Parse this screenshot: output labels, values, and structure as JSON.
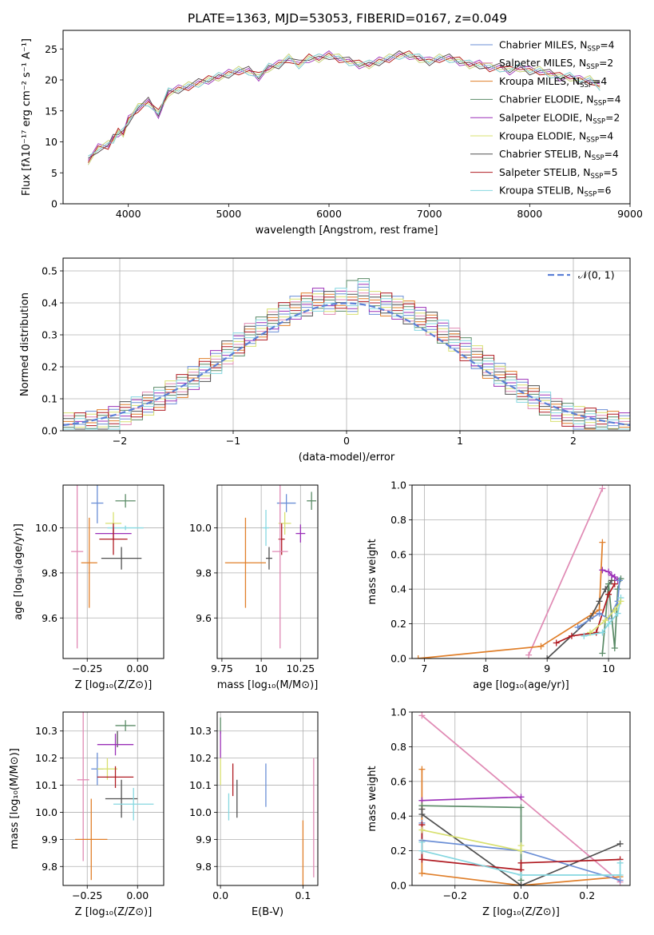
{
  "figure": {
    "title": "PLATE=1363, MJD=53053, FIBERID=0167, z=0.049"
  },
  "colors": {
    "series": [
      "#6b8fd6",
      "#e08ab4",
      "#e07f2a",
      "#5b8b67",
      "#9b30b8",
      "#d8e070",
      "#505050",
      "#b01b22",
      "#86d7e0"
    ],
    "gauss": "#5b7fd6",
    "grid": "#b0b0b0"
  },
  "chart_data": [
    {
      "id": "spectrum",
      "type": "line",
      "xlabel": "wavelength [Angstrom, rest frame]",
      "ylabel": "Flux [fλ10⁻¹⁷ erg cm⁻² s⁻¹ A⁻¹]",
      "xlim": [
        3350,
        9000
      ],
      "ylim": [
        0,
        28
      ],
      "xticks": [
        4000,
        5000,
        6000,
        7000,
        8000,
        9000
      ],
      "yticks": [
        0,
        5,
        10,
        15,
        20,
        25
      ],
      "grid": false,
      "legend_position": "right",
      "x": [
        3600,
        3700,
        3800,
        3850,
        3900,
        3950,
        4000,
        4100,
        4200,
        4300,
        4400,
        4500,
        4600,
        4700,
        4800,
        4900,
        5000,
        5100,
        5200,
        5300,
        5400,
        5500,
        5600,
        5700,
        5800,
        5900,
        6000,
        6100,
        6200,
        6300,
        6400,
        6500,
        6600,
        6700,
        6800,
        6900,
        7000,
        7100,
        7200,
        7300,
        7400,
        7500,
        7600,
        7700,
        7800,
        7900,
        8000,
        8100,
        8200,
        8300,
        8400,
        8500,
        8600,
        8700
      ],
      "y": [
        7,
        9,
        9.5,
        10.5,
        11.5,
        11.5,
        13.5,
        15.5,
        16.5,
        14.5,
        18,
        18.5,
        19,
        19.5,
        20,
        20.5,
        21,
        21.5,
        21.5,
        20.5,
        22,
        22.5,
        23.5,
        22.5,
        23.5,
        23.5,
        24,
        23.5,
        23,
        22.5,
        22.5,
        23,
        23.5,
        24,
        24,
        23.5,
        23,
        23.5,
        23.5,
        23,
        22.5,
        22.5,
        22,
        22,
        21.5,
        22,
        21.5,
        21.5,
        21,
        20.5,
        20.5,
        20,
        20,
        19
      ],
      "series": [
        {
          "name": "Chabrier MILES, N",
          "sub": "SSP",
          "suffix": "=4"
        },
        {
          "name": "Salpeter MILES, N",
          "sub": "SSP",
          "suffix": "=2"
        },
        {
          "name": "Kroupa MILES, N",
          "sub": "SSP",
          "suffix": "=4"
        },
        {
          "name": "Chabrier ELODIE, N",
          "sub": "SSP",
          "suffix": "=4"
        },
        {
          "name": "Salpeter ELODIE, N",
          "sub": "SSP",
          "suffix": "=2"
        },
        {
          "name": "Kroupa ELODIE, N",
          "sub": "SSP",
          "suffix": "=4"
        },
        {
          "name": "Chabrier STELIB, N",
          "sub": "SSP",
          "suffix": "=4"
        },
        {
          "name": "Salpeter STELIB, N",
          "sub": "SSP",
          "suffix": "=5"
        },
        {
          "name": "Kroupa STELIB, N",
          "sub": "SSP",
          "suffix": "=6"
        }
      ]
    },
    {
      "id": "residuals",
      "type": "bar",
      "xlabel": "(data-model)/error",
      "ylabel": "Normed distribution",
      "xlim": [
        -2.5,
        2.5
      ],
      "ylim": [
        0,
        0.54
      ],
      "xticks": [
        -2,
        -1,
        0,
        1,
        2
      ],
      "yticks": [
        0.0,
        0.1,
        0.2,
        0.3,
        0.4,
        0.5
      ],
      "grid": true,
      "legend_position": "top-right",
      "gauss_label": "𝒩(0, 1)",
      "bin_width": 0.1,
      "bin_start": -2.5,
      "values": [
        0.02,
        0.02,
        0.025,
        0.03,
        0.04,
        0.055,
        0.07,
        0.085,
        0.1,
        0.12,
        0.14,
        0.165,
        0.19,
        0.215,
        0.245,
        0.27,
        0.3,
        0.32,
        0.345,
        0.365,
        0.385,
        0.395,
        0.41,
        0.4,
        0.41,
        0.4,
        0.44,
        0.4,
        0.395,
        0.385,
        0.37,
        0.35,
        0.335,
        0.31,
        0.285,
        0.255,
        0.23,
        0.2,
        0.175,
        0.15,
        0.125,
        0.105,
        0.085,
        0.065,
        0.05,
        0.04,
        0.035,
        0.03,
        0.025,
        0.02
      ]
    },
    {
      "id": "z-age",
      "type": "scatter",
      "xlabel": "Z [log₁₀(Z/Z⊙)]",
      "ylabel": "age  [log₁₀(age/yr)]",
      "xlim": [
        -0.37,
        0.13
      ],
      "ylim": [
        9.42,
        10.19
      ],
      "xticks": [
        -0.25,
        0.0
      ],
      "xtick_labels": [
        "−0.25",
        "0.00"
      ],
      "yticks": [
        9.6,
        9.8,
        10.0
      ],
      "grid": true,
      "points": [
        {
          "x": -0.2,
          "y": 10.11,
          "xe": 0.03,
          "ye": 0.09,
          "c": 0
        },
        {
          "x": -0.06,
          "y": 10.12,
          "xe": 0.05,
          "ye": 0.03,
          "c": 3
        },
        {
          "x": -0.12,
          "y": 10.02,
          "xe": 0.04,
          "ye": 0.05,
          "c": 5
        },
        {
          "x": -0.06,
          "y": 10.0,
          "xe": 0.09,
          "ye": 0.01,
          "c": 8
        },
        {
          "x": -0.12,
          "y": 9.975,
          "xe": 0.09,
          "ye": 0.03,
          "c": 4
        },
        {
          "x": -0.12,
          "y": 9.95,
          "xe": 0.07,
          "ye": 0.07,
          "c": 7
        },
        {
          "x": -0.08,
          "y": 9.865,
          "xe": 0.1,
          "ye": 0.05,
          "c": 6
        },
        {
          "x": -0.3,
          "y": 9.895,
          "xe": 0.03,
          "ye": 0.43,
          "c": 1
        },
        {
          "x": -0.24,
          "y": 9.845,
          "xe": 0.04,
          "ye": 0.2,
          "c": 2
        }
      ]
    },
    {
      "id": "mass-age",
      "type": "scatter",
      "xlabel": "mass [log₁₀(M/M⊙)]",
      "ylabel": "",
      "xlim": [
        9.72,
        10.36
      ],
      "ylim": [
        9.42,
        10.19
      ],
      "xticks": [
        9.75,
        10.0,
        10.25
      ],
      "yticks": [
        9.6,
        9.8,
        10.0
      ],
      "grid": true,
      "points": [
        {
          "x": 10.16,
          "y": 10.11,
          "xe": 0.06,
          "ye": 0.04,
          "c": 0
        },
        {
          "x": 10.32,
          "y": 10.12,
          "xe": 0.03,
          "ye": 0.04,
          "c": 3
        },
        {
          "x": 10.15,
          "y": 10.02,
          "xe": 0.04,
          "ye": 0.05,
          "c": 5
        },
        {
          "x": 10.03,
          "y": 10.0,
          "xe": 0.02,
          "ye": 0.08,
          "c": 8
        },
        {
          "x": 10.25,
          "y": 9.975,
          "xe": 0.03,
          "ye": 0.04,
          "c": 4
        },
        {
          "x": 10.13,
          "y": 9.95,
          "xe": 0.02,
          "ye": 0.07,
          "c": 7
        },
        {
          "x": 10.05,
          "y": 9.865,
          "xe": 0.02,
          "ye": 0.05,
          "c": 6
        },
        {
          "x": 10.12,
          "y": 9.895,
          "xe": 0.05,
          "ye": 0.43,
          "c": 1
        },
        {
          "x": 9.9,
          "y": 9.845,
          "xe": 0.13,
          "ye": 0.2,
          "c": 2
        }
      ]
    },
    {
      "id": "age-weight",
      "type": "line",
      "xlabel": "age  [log₁₀(age/yr)]",
      "ylabel": "mass weight",
      "xlim": [
        6.8,
        10.35
      ],
      "ylim": [
        0,
        1.0
      ],
      "xticks": [
        7,
        8,
        9,
        10
      ],
      "yticks": [
        0.0,
        0.2,
        0.4,
        0.6,
        0.8,
        1.0
      ],
      "grid": true,
      "series": [
        {
          "c": 1,
          "x": [
            8.7,
            9.9
          ],
          "y": [
            0.02,
            0.98
          ]
        },
        {
          "c": 2,
          "x": [
            6.9,
            8.9,
            9.75,
            9.85,
            9.9
          ],
          "y": [
            0.0,
            0.07,
            0.26,
            0.28,
            0.67
          ]
        },
        {
          "c": 6,
          "x": [
            9.0,
            9.7,
            9.85,
            9.95,
            10.05
          ],
          "y": [
            0.0,
            0.23,
            0.33,
            0.4,
            0.45
          ]
        },
        {
          "c": 4,
          "x": [
            9.9,
            10.0,
            10.05,
            10.1,
            10.15
          ],
          "y": [
            0.51,
            0.5,
            0.48,
            0.47,
            0.45
          ]
        },
        {
          "c": 3,
          "x": [
            9.9,
            10.0,
            10.1,
            10.15,
            10.2
          ],
          "y": [
            0.03,
            0.43,
            0.06,
            0.4,
            0.46
          ]
        },
        {
          "c": 7,
          "x": [
            9.15,
            9.4,
            9.8,
            10.0,
            10.1
          ],
          "y": [
            0.09,
            0.13,
            0.15,
            0.37,
            0.43
          ]
        },
        {
          "c": 0,
          "x": [
            9.5,
            9.85,
            10.0,
            10.15,
            10.18
          ],
          "y": [
            0.18,
            0.26,
            0.23,
            0.33,
            0.45
          ]
        },
        {
          "c": 8,
          "x": [
            9.6,
            9.9,
            10.0,
            10.15,
            10.2
          ],
          "y": [
            0.13,
            0.15,
            0.2,
            0.26,
            0.35
          ]
        },
        {
          "c": 5,
          "x": [
            9.7,
            9.95,
            10.1,
            10.2
          ],
          "y": [
            0.15,
            0.22,
            0.28,
            0.33
          ]
        }
      ]
    },
    {
      "id": "z-mass",
      "type": "scatter",
      "xlabel": "Z [log₁₀(Z/Z⊙)]",
      "ylabel": "mass [log₁₀(M/M⊙)]",
      "xlim": [
        -0.37,
        0.13
      ],
      "ylim": [
        9.73,
        10.37
      ],
      "xticks": [
        -0.25,
        0.0
      ],
      "xtick_labels": [
        "−0.25",
        "0.00"
      ],
      "yticks": [
        9.8,
        9.9,
        10.0,
        10.1,
        10.2,
        10.3
      ],
      "grid": true,
      "points": [
        {
          "x": -0.06,
          "y": 10.32,
          "xe": 0.05,
          "ye": 0.02,
          "c": 3
        },
        {
          "x": -0.1,
          "y": 10.27,
          "xe": 0.0,
          "ye": 0.03,
          "c": 6
        },
        {
          "x": -0.11,
          "y": 10.25,
          "xe": 0.09,
          "ye": 0.04,
          "c": 4
        },
        {
          "x": -0.2,
          "y": 10.16,
          "xe": 0.03,
          "ye": 0.06,
          "c": 0
        },
        {
          "x": -0.15,
          "y": 10.16,
          "xe": 0.05,
          "ye": 0.04,
          "c": 5
        },
        {
          "x": -0.11,
          "y": 10.13,
          "xe": 0.09,
          "ye": 0.04,
          "c": 7
        },
        {
          "x": -0.27,
          "y": 10.12,
          "xe": 0.03,
          "ye": 0.3,
          "c": 1
        },
        {
          "x": -0.08,
          "y": 10.05,
          "xe": 0.08,
          "ye": 0.07,
          "c": 6
        },
        {
          "x": -0.02,
          "y": 10.03,
          "xe": 0.1,
          "ye": 0.06,
          "c": 8
        },
        {
          "x": -0.23,
          "y": 9.9,
          "xe": 0.08,
          "ye": 0.15,
          "c": 2
        }
      ]
    },
    {
      "id": "ebv-mass",
      "type": "scatter",
      "xlabel": "E(B-V)",
      "ylabel": "",
      "xlim": [
        -0.004,
        0.118
      ],
      "ylim": [
        9.73,
        10.37
      ],
      "xticks": [
        0.0,
        0.1
      ],
      "xtick_labels": [
        "0.0",
        "0.1"
      ],
      "yticks": [
        9.8,
        9.9,
        10.0,
        10.1,
        10.2,
        10.3
      ],
      "grid": true,
      "points": [
        {
          "x": 0.0,
          "y": 10.32,
          "xe": 0,
          "ye": 0.03,
          "c": 3
        },
        {
          "x": 0.0,
          "y": 10.25,
          "xe": 0,
          "ye": 0.05,
          "c": 4
        },
        {
          "x": 0.0,
          "y": 10.15,
          "xe": 0,
          "ye": 0.05,
          "c": 5
        },
        {
          "x": 0.015,
          "y": 10.12,
          "xe": 0,
          "ye": 0.06,
          "c": 7
        },
        {
          "x": 0.02,
          "y": 10.05,
          "xe": 0,
          "ye": 0.07,
          "c": 6
        },
        {
          "x": 0.01,
          "y": 10.02,
          "xe": 0,
          "ye": 0.05,
          "c": 8
        },
        {
          "x": 0.055,
          "y": 10.1,
          "xe": 0,
          "ye": 0.08,
          "c": 0
        },
        {
          "x": 0.1,
          "y": 9.85,
          "xe": 0,
          "ye": 0.12,
          "c": 2
        },
        {
          "x": 0.113,
          "y": 9.98,
          "xe": 0,
          "ye": 0.22,
          "c": 1
        }
      ]
    },
    {
      "id": "z-weight",
      "type": "line",
      "xlabel": "Z [log₁₀(Z/Z⊙)]",
      "ylabel": "mass weight",
      "xlim": [
        -0.33,
        0.33
      ],
      "ylim": [
        0,
        1.0
      ],
      "xticks": [
        -0.2,
        0.0,
        0.2
      ],
      "xtick_labels": [
        "−0.2",
        "0.0",
        "0.2"
      ],
      "yticks": [
        0.0,
        0.2,
        0.4,
        0.6,
        0.8,
        1.0
      ],
      "grid": true,
      "series": [
        {
          "c": 1,
          "x": [
            -0.3,
            0.3
          ],
          "y": [
            0.98,
            0.02
          ]
        },
        {
          "c": 2,
          "x": [
            -0.3,
            -0.3,
            0.0,
            0.3
          ],
          "y": [
            0.67,
            0.07,
            0.0,
            0.05
          ]
        },
        {
          "c": 4,
          "x": [
            -0.3,
            0.0
          ],
          "y": [
            0.49,
            0.51
          ]
        },
        {
          "c": 3,
          "x": [
            -0.3,
            0.0,
            0.0
          ],
          "y": [
            0.46,
            0.45,
            0.03
          ]
        },
        {
          "c": 6,
          "x": [
            -0.3,
            -0.3,
            0.0,
            0.3
          ],
          "y": [
            0.44,
            0.41,
            0.0,
            0.24
          ]
        },
        {
          "c": 0,
          "x": [
            -0.3,
            -0.3,
            0.0,
            0.3
          ],
          "y": [
            0.36,
            0.26,
            0.2,
            0.03
          ]
        },
        {
          "c": 7,
          "x": [
            -0.3,
            -0.3,
            0.0,
            0.0,
            0.3
          ],
          "y": [
            0.35,
            0.15,
            0.09,
            0.13,
            0.15
          ]
        },
        {
          "c": 5,
          "x": [
            -0.3,
            0.0,
            0.0
          ],
          "y": [
            0.32,
            0.2,
            0.23
          ]
        },
        {
          "c": 8,
          "x": [
            -0.3,
            -0.3,
            0.0,
            0.3,
            0.3
          ],
          "y": [
            0.25,
            0.2,
            0.06,
            0.06,
            0.13
          ]
        }
      ]
    }
  ]
}
